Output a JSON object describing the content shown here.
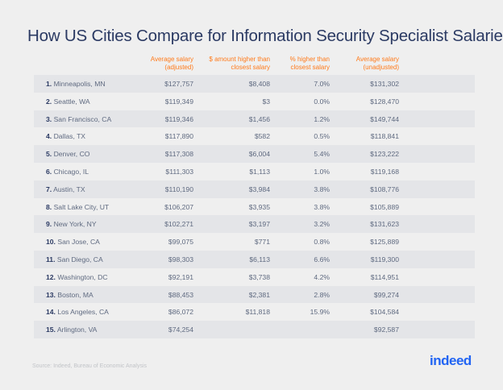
{
  "chart_data": {
    "type": "table",
    "title": "How US Cities Compare for Information Security Specialist Salaries",
    "columns": [
      "Average salary (adjusted)",
      "$ amount higher than closest  salary",
      "% higher than closest salary",
      "Average salary (unadjusted)"
    ],
    "column_lines": [
      [
        "Average salary",
        "(adjusted)"
      ],
      [
        "$ amount higher than",
        "closest  salary"
      ],
      [
        "% higher than",
        "closest salary"
      ],
      [
        "Average salary",
        "(unadjusted)"
      ]
    ],
    "rows": [
      {
        "rank": "1.",
        "city": "Minneapolis, MN",
        "adjusted": "$127,757",
        "diff": "$8,408",
        "pct": "7.0%",
        "unadjusted": "$131,302"
      },
      {
        "rank": "2.",
        "city": "Seattle, WA",
        "adjusted": "$119,349",
        "diff": "$3",
        "pct": "0.0%",
        "unadjusted": "$128,470"
      },
      {
        "rank": "3.",
        "city": "San Francisco, CA",
        "adjusted": "$119,346",
        "diff": "$1,456",
        "pct": "1.2%",
        "unadjusted": "$149,744"
      },
      {
        "rank": "4.",
        "city": "Dallas, TX",
        "adjusted": "$117,890",
        "diff": "$582",
        "pct": "0.5%",
        "unadjusted": "$118,841"
      },
      {
        "rank": "5.",
        "city": "Denver, CO",
        "adjusted": "$117,308",
        "diff": "$6,004",
        "pct": "5.4%",
        "unadjusted": "$123,222"
      },
      {
        "rank": "6.",
        "city": "Chicago, IL",
        "adjusted": "$111,303",
        "diff": "$1,113",
        "pct": "1.0%",
        "unadjusted": "$119,168"
      },
      {
        "rank": "7.",
        "city": "Austin, TX",
        "adjusted": "$110,190",
        "diff": "$3,984",
        "pct": "3.8%",
        "unadjusted": "$108,776"
      },
      {
        "rank": "8.",
        "city": "Salt Lake City, UT",
        "adjusted": "$106,207",
        "diff": "$3,935",
        "pct": "3.8%",
        "unadjusted": "$105,889"
      },
      {
        "rank": "9.",
        "city": "New York, NY",
        "adjusted": "$102,271",
        "diff": "$3,197",
        "pct": "3.2%",
        "unadjusted": "$131,623"
      },
      {
        "rank": "10.",
        "city": "San Jose, CA",
        "adjusted": "$99,075",
        "diff": "$771",
        "pct": "0.8%",
        "unadjusted": "$125,889"
      },
      {
        "rank": "11.",
        "city": "San Diego, CA",
        "adjusted": "$98,303",
        "diff": "$6,113",
        "pct": "6.6%",
        "unadjusted": "$119,300"
      },
      {
        "rank": "12.",
        "city": "Washington, DC",
        "adjusted": "$92,191",
        "diff": "$3,738",
        "pct": "4.2%",
        "unadjusted": "$114,951"
      },
      {
        "rank": "13.",
        "city": "Boston, MA",
        "adjusted": "$88,453",
        "diff": "$2,381",
        "pct": "2.8%",
        "unadjusted": "$99,274"
      },
      {
        "rank": "14.",
        "city": "Los Angeles, CA",
        "adjusted": "$86,072",
        "diff": "$11,818",
        "pct": "15.9%",
        "unadjusted": "$104,584"
      },
      {
        "rank": "15.",
        "city": "Arlington, VA",
        "adjusted": "$74,254",
        "diff": "",
        "pct": "",
        "unadjusted": "$92,587"
      }
    ],
    "colors": {
      "title": "#2b3a63",
      "header": "#ff7a1a",
      "row_alt": "#e4e5e8",
      "background": "#efefef"
    }
  },
  "footer": {
    "source": "Source: Indeed, Bureau of Economic Analysis",
    "logo": "indeed"
  }
}
